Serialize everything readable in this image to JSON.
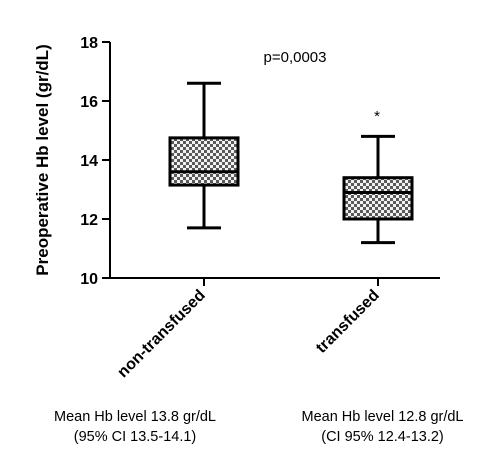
{
  "chart_data": {
    "type": "boxplot",
    "ylabel": "Preoperative Hb level (gr/dL)",
    "ylim": [
      10,
      18
    ],
    "yticks": [
      10,
      12,
      14,
      16,
      18
    ],
    "categories": [
      "non-transfused",
      "transfused"
    ],
    "boxes": [
      {
        "category": "non-transfused",
        "whisker_low": 11.7,
        "q1": 13.15,
        "median": 13.6,
        "q3": 14.75,
        "whisker_high": 16.6
      },
      {
        "category": "transfused",
        "whisker_low": 11.2,
        "q1": 12.0,
        "median": 12.9,
        "q3": 13.4,
        "whisker_high": 14.8
      }
    ],
    "annotations": {
      "p_value": "p=0,0003",
      "significance_marker": "*"
    },
    "fill_pattern": "checkered",
    "grid": false
  },
  "footnotes": {
    "left": {
      "line1": "Mean Hb level 13.8 gr/dL",
      "line2": "(95% CI 13.5-14.1)"
    },
    "right": {
      "line1": "Mean Hb level 12.8 gr/dL",
      "line2": "(CI 95% 12.4-13.2)"
    }
  }
}
